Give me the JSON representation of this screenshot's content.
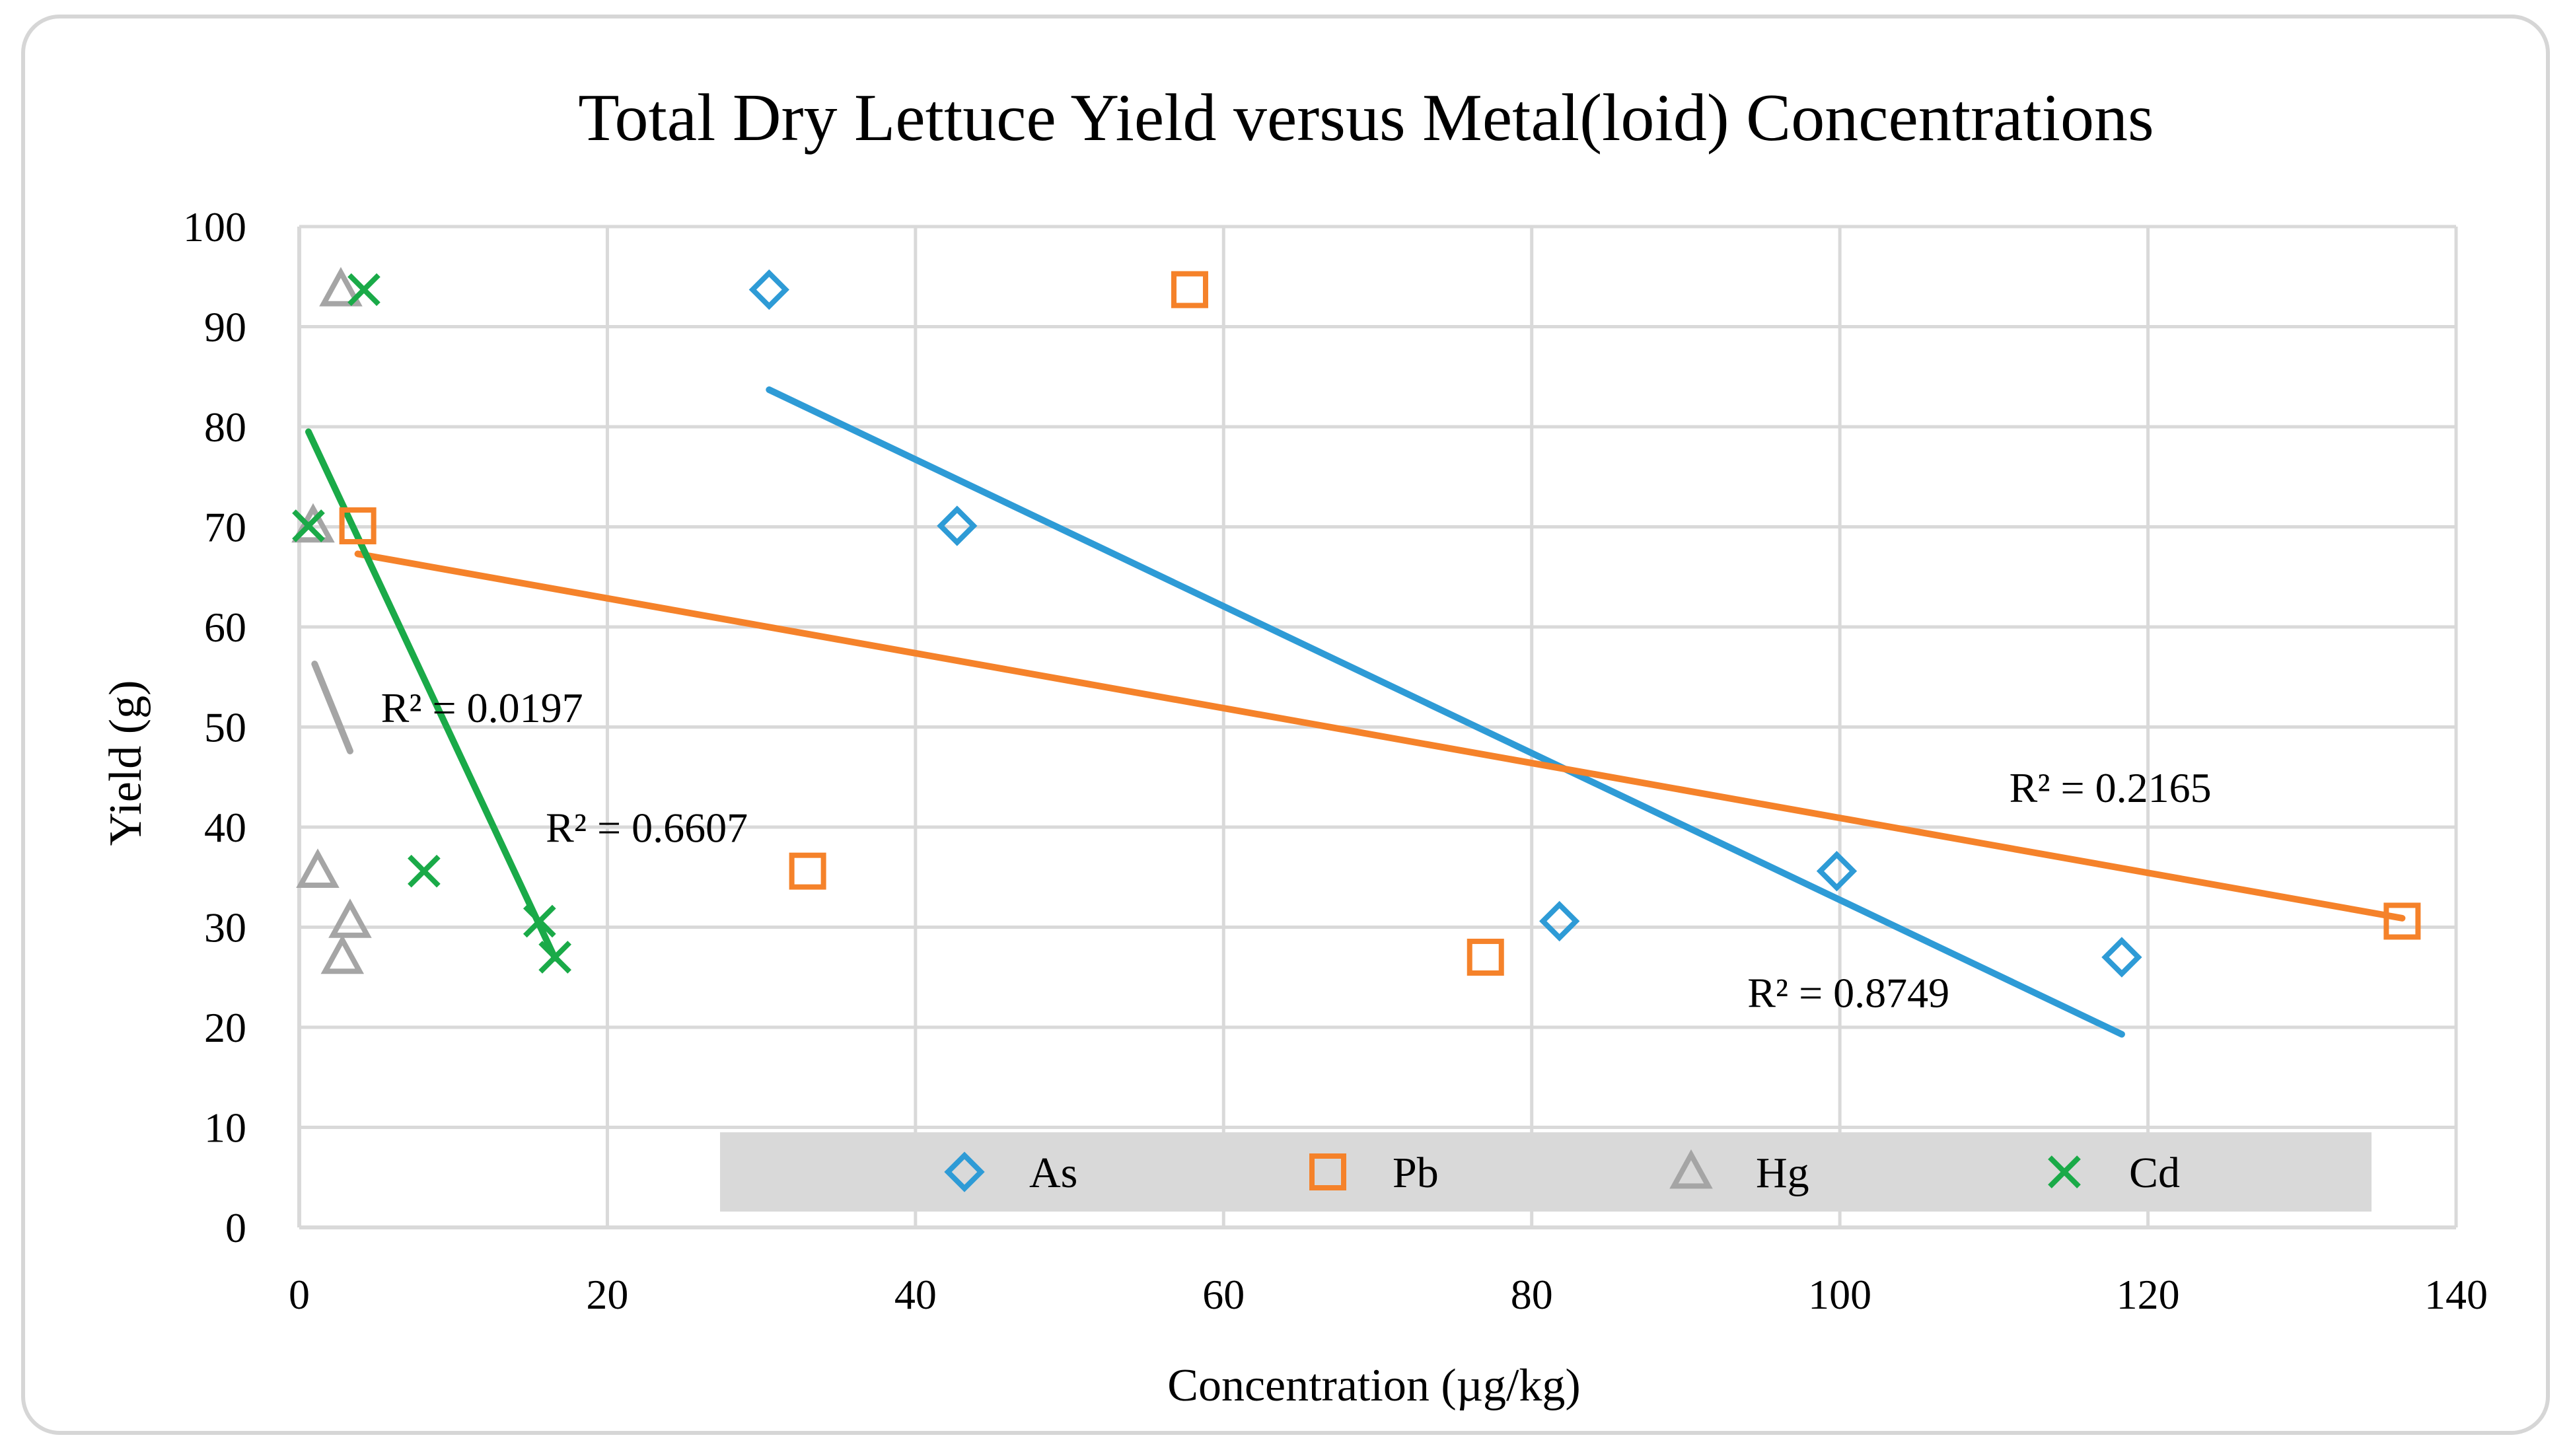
{
  "chart_data": {
    "type": "scatter",
    "title": "Total Dry Lettuce Yield versus Metal(loid) Concentrations",
    "xlabel": "Concentration (µg/kg)",
    "ylabel": "Yield (g)",
    "xlim": [
      0,
      140
    ],
    "ylim": [
      0,
      100
    ],
    "xticks": [
      0,
      20,
      40,
      60,
      80,
      100,
      120,
      140
    ],
    "yticks": [
      0,
      10,
      20,
      30,
      40,
      50,
      60,
      70,
      80,
      90,
      100
    ],
    "grid": true,
    "legend_position": "bottom",
    "series": [
      {
        "name": "As",
        "marker": "diamond",
        "color": "#2e9bd6",
        "points": [
          [
            30.5,
            93.7
          ],
          [
            42.7,
            70.1
          ],
          [
            81.8,
            30.6
          ],
          [
            99.8,
            35.6
          ],
          [
            118.3,
            27.0
          ]
        ],
        "trendline": {
          "x": [
            30.5,
            118.3
          ],
          "y": [
            83.7,
            19.3
          ]
        },
        "r2_label": "R² = 0.8749",
        "r2_anchor": [
          94,
          22
        ]
      },
      {
        "name": "Pb",
        "marker": "square",
        "color": "#f5822a",
        "points": [
          [
            57.8,
            93.7
          ],
          [
            3.8,
            70.1
          ],
          [
            33.0,
            35.6
          ],
          [
            77.0,
            27.0
          ],
          [
            136.5,
            30.6
          ]
        ],
        "trendline": {
          "x": [
            3.8,
            136.5
          ],
          "y": [
            67.3,
            30.9
          ]
        },
        "r2_label": "R² = 0.2165",
        "r2_anchor": [
          111,
          42.5
        ]
      },
      {
        "name": "Hg",
        "marker": "triangle",
        "color": "#a5a5a5",
        "points": [
          [
            2.7,
            93.7
          ],
          [
            0.9,
            70.1
          ],
          [
            1.2,
            35.6
          ],
          [
            3.3,
            30.6
          ],
          [
            2.8,
            27.0
          ]
        ],
        "trendline": {
          "x": [
            1.0,
            3.3
          ],
          "y": [
            56.3,
            47.6
          ]
        },
        "r2_label": "R² = 0.0197",
        "r2_anchor": [
          5.3,
          50.5
        ]
      },
      {
        "name": "Cd",
        "marker": "x",
        "color": "#1aaa48",
        "points": [
          [
            4.2,
            93.7
          ],
          [
            0.6,
            70.1
          ],
          [
            8.1,
            35.6
          ],
          [
            15.6,
            30.6
          ],
          [
            16.6,
            27.0
          ]
        ],
        "trendline": {
          "x": [
            0.6,
            16.6
          ],
          "y": [
            79.5,
            26.9
          ]
        },
        "r2_label": "R² = 0.6607",
        "r2_anchor": [
          16,
          38.5
        ]
      }
    ]
  }
}
